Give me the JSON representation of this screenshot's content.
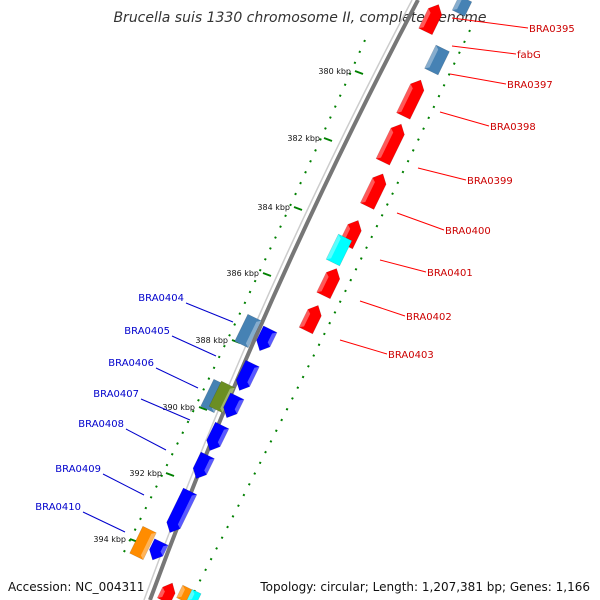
{
  "title": "Brucella suis 1330 chromosome II, complete genome",
  "footer": {
    "accession": "Accession: NC_004311",
    "topology": "Topology: circular; Length: 1,207,381 bp; Genes: 1,166"
  },
  "colors": {
    "forward": "#ff0000",
    "reverse": "#0000ff",
    "rna": "#4682b4",
    "cyan": "#00ffff",
    "orange": "#ff8c00",
    "olive": "#6b8e23",
    "backbone": "#777777",
    "ticks": "#008000"
  },
  "ticks": [
    {
      "label": "380 kbp"
    },
    {
      "label": "382 kbp"
    },
    {
      "label": "384 kbp"
    },
    {
      "label": "386 kbp"
    },
    {
      "label": "388 kbp"
    },
    {
      "label": "390 kbp"
    },
    {
      "label": "392 kbp"
    },
    {
      "label": "394 kbp"
    }
  ],
  "forward_genes": [
    "BRA0395",
    "fabG",
    "BRA0397",
    "BRA0398",
    "BRA0399",
    "BRA0400",
    "BRA0401",
    "BRA0402",
    "BRA0403"
  ],
  "reverse_genes": [
    "BRA0404",
    "BRA0405",
    "BRA0406",
    "BRA0407",
    "BRA0408",
    "BRA0409",
    "BRA0410"
  ]
}
